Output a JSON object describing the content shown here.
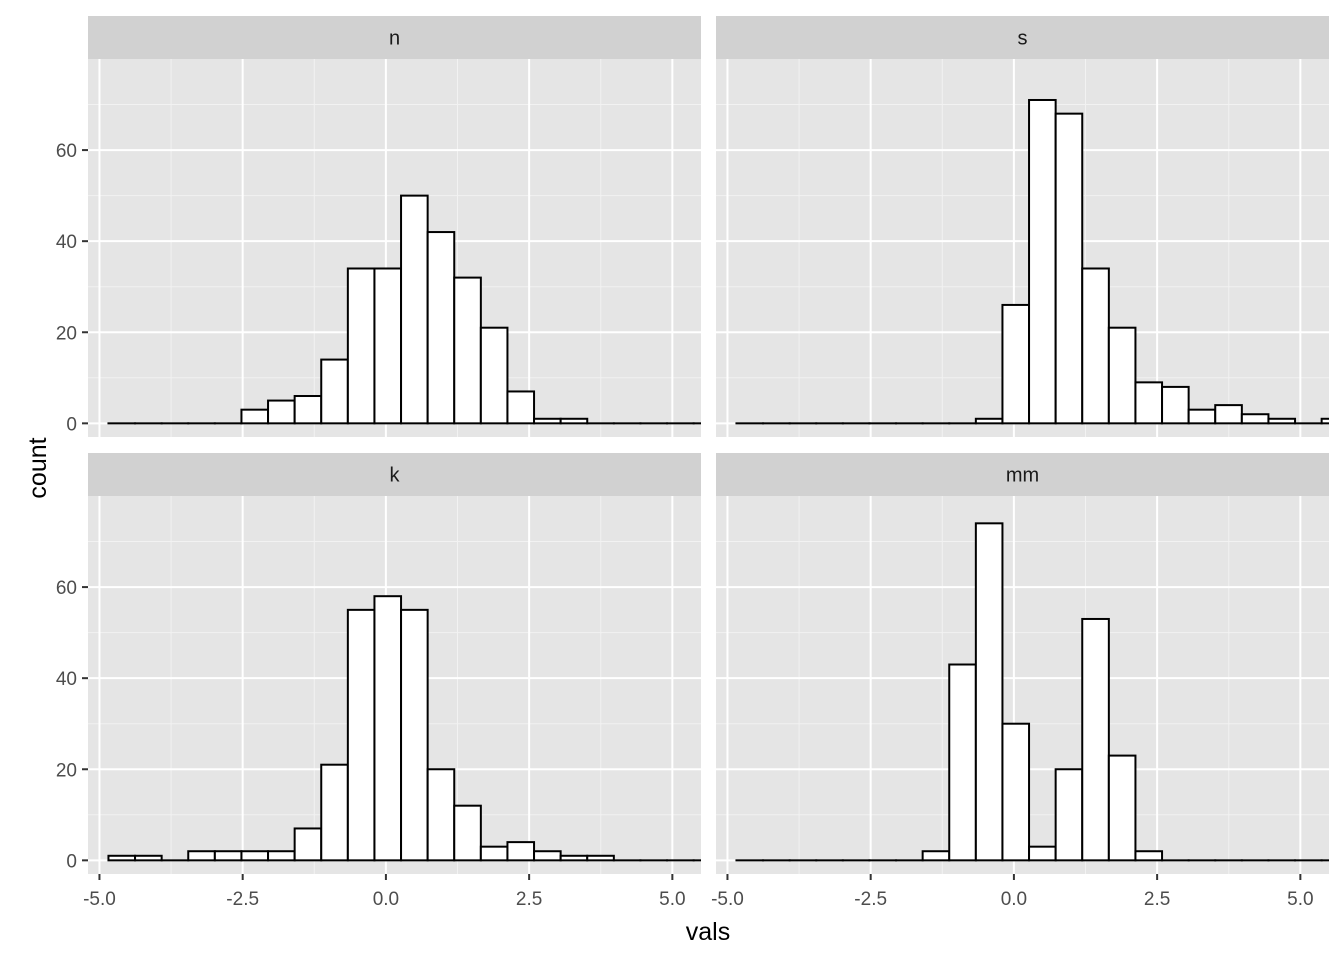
{
  "chart_data": {
    "type": "bar",
    "layout": "facet-grid-2x2",
    "xlabel": "vals",
    "ylabel": "count",
    "xlim": [
      -5.2,
      5.5
    ],
    "ylim": [
      -3,
      80
    ],
    "x_ticks": [
      -5.0,
      -2.5,
      0.0,
      2.5,
      5.0
    ],
    "x_tick_labels": [
      "-5.0",
      "-2.5",
      "0.0",
      "2.5",
      "5.0"
    ],
    "y_ticks": [
      0,
      20,
      40,
      60
    ],
    "y_tick_labels": [
      "0",
      "20",
      "40",
      "60"
    ],
    "bin_start": -4.843,
    "bin_width": 0.4643,
    "grid": true,
    "colors": {
      "panel_bg": "#e5e5e5",
      "strip_bg": "#d1d1d1",
      "grid_major": "#ffffff",
      "grid_minor": "#f2f2f2",
      "bar_fill": "#ffffff",
      "bar_outline": "#000000"
    },
    "facets": [
      {
        "label": "n",
        "values": [
          0,
          0,
          0,
          0,
          0,
          3,
          5,
          6,
          14,
          34,
          34,
          50,
          42,
          32,
          21,
          7,
          1,
          1,
          0,
          0,
          0,
          0,
          0,
          0,
          0
        ]
      },
      {
        "label": "s",
        "values": [
          0,
          0,
          0,
          0,
          0,
          0,
          0,
          0,
          0,
          1,
          26,
          71,
          68,
          34,
          21,
          9,
          8,
          3,
          4,
          2,
          1,
          0,
          1,
          0,
          0
        ]
      },
      {
        "label": "k",
        "values": [
          1,
          1,
          0,
          2,
          2,
          2,
          2,
          7,
          21,
          55,
          58,
          55,
          20,
          12,
          3,
          4,
          2,
          1,
          1,
          0,
          0,
          0,
          0,
          0,
          0
        ]
      },
      {
        "label": "mm",
        "values": [
          0,
          0,
          0,
          0,
          0,
          0,
          0,
          2,
          43,
          74,
          30,
          3,
          20,
          53,
          23,
          2,
          0,
          0,
          0,
          0,
          0,
          0,
          0,
          0,
          0
        ]
      }
    ]
  }
}
